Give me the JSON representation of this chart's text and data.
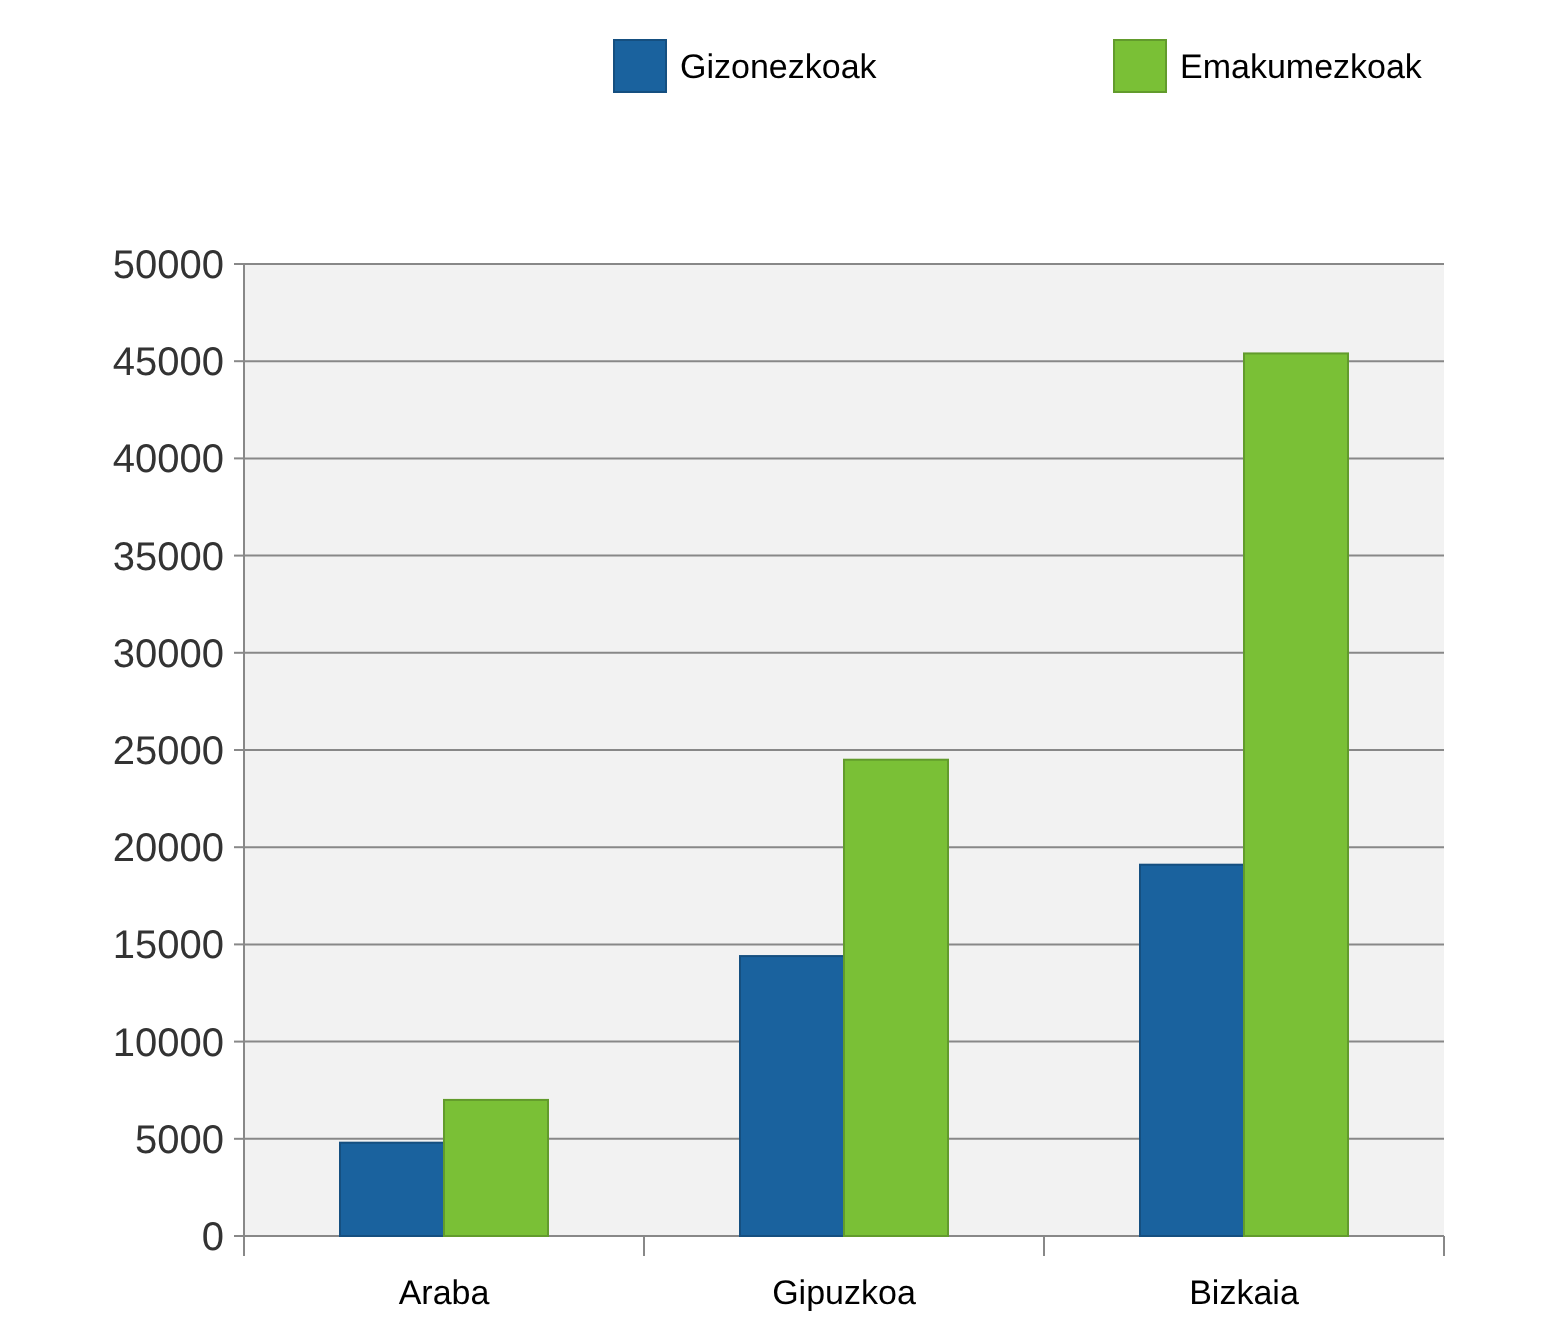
{
  "chart_data": {
    "type": "bar",
    "categories": [
      "Araba",
      "Gipuzkoa",
      "Bizkaia"
    ],
    "series": [
      {
        "name": "Gizonezkoak",
        "color": "#1a629e",
        "values": [
          4800,
          14400,
          19100
        ]
      },
      {
        "name": "Emakumezkoak",
        "color": "#7ac036",
        "values": [
          7000,
          24500,
          45400
        ]
      }
    ],
    "ylim": [
      0,
      50000
    ],
    "yticks": [
      0,
      5000,
      10000,
      15000,
      20000,
      25000,
      30000,
      35000,
      40000,
      45000,
      50000
    ],
    "grid": "y",
    "legend": "top right"
  }
}
